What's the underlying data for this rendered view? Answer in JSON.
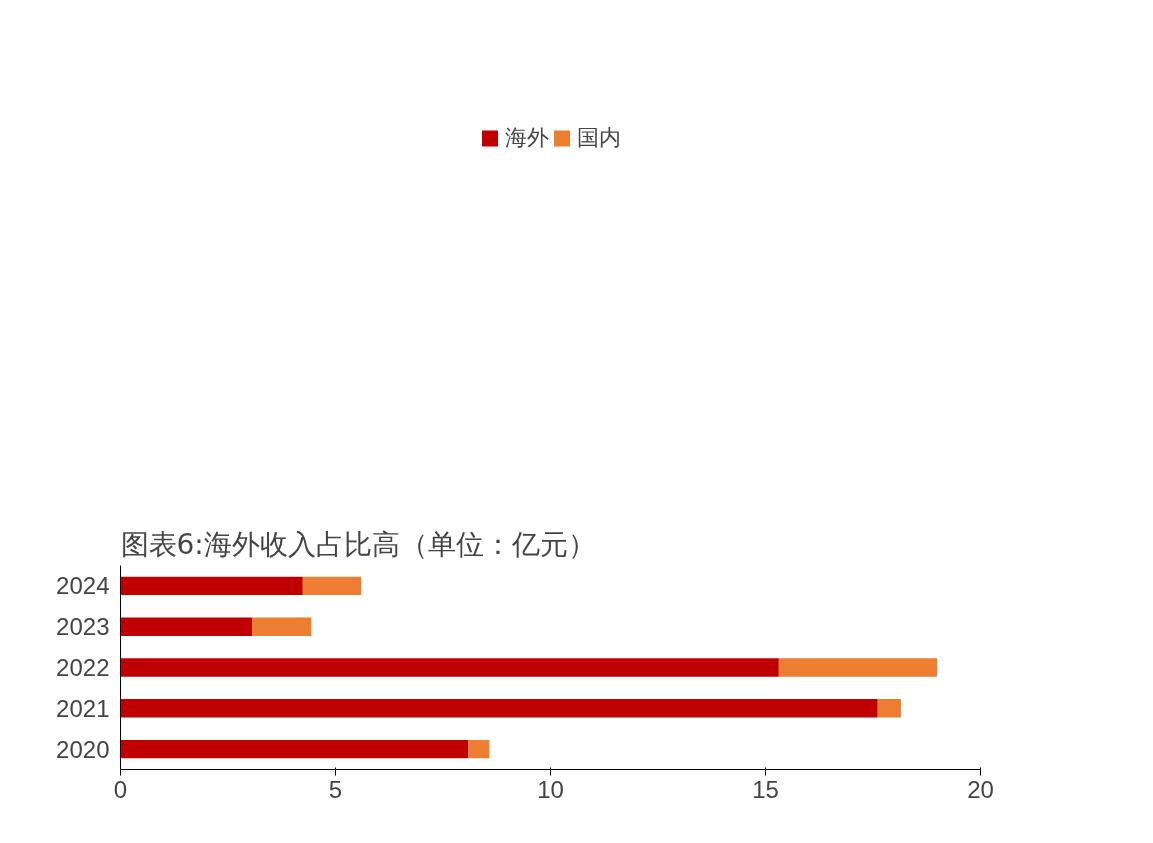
{
  "chart_data": {
    "type": "bar",
    "orientation": "horizontal",
    "stacked": true,
    "title": "图表6:海外收入占比高（单位：亿元）",
    "categories": [
      "2024",
      "2023",
      "2022",
      "2021",
      "2020"
    ],
    "series": [
      {
        "name": "海外",
        "color": "#c00000",
        "values": [
          4.24,
          3.06,
          15.31,
          17.61,
          8.09
        ]
      },
      {
        "name": "国内",
        "color": "#ed7d31",
        "values": [
          1.36,
          1.38,
          3.68,
          0.54,
          0.49
        ]
      }
    ],
    "xlim": [
      0,
      20
    ],
    "xticks": [
      0,
      5,
      10,
      15,
      20
    ],
    "grid": false,
    "legend": "top"
  }
}
